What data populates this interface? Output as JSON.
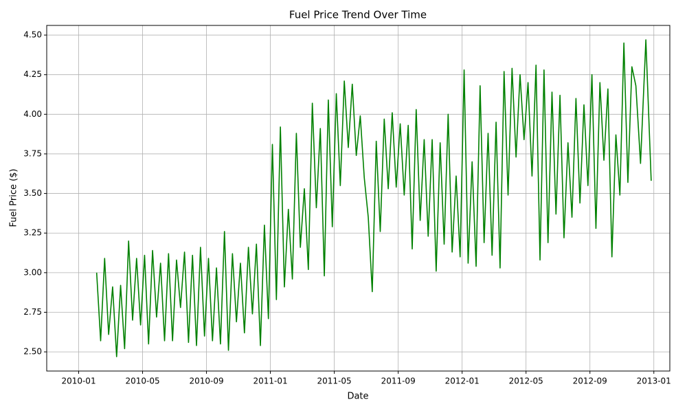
{
  "chart_data": {
    "type": "line",
    "title": "Fuel Price Trend Over Time",
    "x_label": "Date",
    "y_label": "Fuel Price ($)",
    "color": "#008000",
    "grid": true,
    "xlim": [
      "2009-11",
      "2013-02"
    ],
    "xticks": [
      "2010-01",
      "2010-05",
      "2010-09",
      "2011-01",
      "2011-05",
      "2011-09",
      "2012-01",
      "2012-05",
      "2012-09",
      "2013-01"
    ],
    "ylim": [
      2.379,
      4.561
    ],
    "yticks": [
      {
        "value": 2.5,
        "label": "2.50"
      },
      {
        "value": 2.75,
        "label": "2.75"
      },
      {
        "value": 3,
        "label": "3.00"
      },
      {
        "value": 3.25,
        "label": "3.25"
      },
      {
        "value": 3.5,
        "label": "3.50"
      },
      {
        "value": 3.75,
        "label": "3.75"
      },
      {
        "value": 4,
        "label": "4.00"
      },
      {
        "value": 4.25,
        "label": "4.25"
      },
      {
        "value": 4.5,
        "label": "4.50"
      }
    ],
    "x": [
      "2010-02",
      "2010-02",
      "2010-02",
      "2010-02",
      "2010-03",
      "2010-03",
      "2010-03",
      "2010-03",
      "2010-04",
      "2010-04",
      "2010-04",
      "2010-04",
      "2010-05",
      "2010-05",
      "2010-05",
      "2010-05",
      "2010-06",
      "2010-06",
      "2010-06",
      "2010-06",
      "2010-07",
      "2010-07",
      "2010-07",
      "2010-07",
      "2010-08",
      "2010-08",
      "2010-08",
      "2010-08",
      "2010-09",
      "2010-09",
      "2010-09",
      "2010-09",
      "2010-10",
      "2010-10",
      "2010-10",
      "2010-10",
      "2010-11",
      "2010-11",
      "2010-11",
      "2010-11",
      "2010-12",
      "2010-12",
      "2010-12",
      "2010-12",
      "2011-01",
      "2011-01",
      "2011-01",
      "2011-01",
      "2011-02",
      "2011-02",
      "2011-02",
      "2011-02",
      "2011-03",
      "2011-03",
      "2011-03",
      "2011-03",
      "2011-04",
      "2011-04",
      "2011-04",
      "2011-04",
      "2011-05",
      "2011-05",
      "2011-05",
      "2011-05",
      "2011-06",
      "2011-06",
      "2011-06",
      "2011-06",
      "2011-07",
      "2011-07",
      "2011-07",
      "2011-07",
      "2011-08",
      "2011-08",
      "2011-08",
      "2011-08",
      "2011-09",
      "2011-09",
      "2011-09",
      "2011-09",
      "2011-10",
      "2011-10",
      "2011-10",
      "2011-10",
      "2011-11",
      "2011-11",
      "2011-11",
      "2011-11",
      "2011-12",
      "2011-12",
      "2011-12",
      "2011-12",
      "2012-01",
      "2012-01",
      "2012-01",
      "2012-01",
      "2012-02",
      "2012-02",
      "2012-02",
      "2012-02",
      "2012-03",
      "2012-03",
      "2012-03",
      "2012-03",
      "2012-04",
      "2012-04",
      "2012-04",
      "2012-04",
      "2012-05",
      "2012-05",
      "2012-05",
      "2012-05",
      "2012-06",
      "2012-06",
      "2012-06",
      "2012-06",
      "2012-07",
      "2012-07",
      "2012-07",
      "2012-07",
      "2012-08",
      "2012-08",
      "2012-08",
      "2012-08",
      "2012-09",
      "2012-09",
      "2012-09",
      "2012-09",
      "2012-10",
      "2012-10",
      "2012-10",
      "2012-10",
      "2012-11",
      "2012-11",
      "2012-11",
      "2012-11",
      "2012-12",
      "2012-12",
      "2012-12"
    ],
    "values": [
      3.0,
      2.57,
      3.09,
      2.61,
      2.91,
      2.47,
      2.92,
      2.52,
      3.2,
      2.7,
      3.09,
      2.67,
      3.11,
      2.55,
      3.14,
      2.72,
      3.06,
      2.57,
      3.12,
      2.57,
      3.08,
      2.78,
      3.13,
      2.56,
      3.11,
      2.54,
      3.16,
      2.6,
      3.09,
      2.57,
      3.03,
      2.55,
      3.26,
      2.51,
      3.12,
      2.69,
      3.06,
      2.62,
      3.16,
      2.74,
      3.18,
      2.54,
      3.3,
      2.71,
      3.81,
      2.83,
      3.92,
      2.91,
      3.4,
      2.96,
      3.88,
      3.16,
      3.53,
      3.02,
      4.07,
      3.41,
      3.91,
      2.98,
      4.09,
      3.29,
      4.13,
      3.55,
      4.21,
      3.79,
      4.19,
      3.74,
      3.99,
      3.6,
      3.35,
      2.88,
      3.83,
      3.26,
      3.97,
      3.53,
      4.01,
      3.54,
      3.94,
      3.49,
      3.93,
      3.15,
      4.03,
      3.33,
      3.84,
      3.23,
      3.84,
      3.01,
      3.82,
      3.18,
      4.0,
      3.13,
      3.61,
      3.1,
      4.28,
      3.06,
      3.7,
      3.04,
      4.18,
      3.19,
      3.88,
      3.11,
      3.95,
      3.03,
      4.27,
      3.49,
      4.29,
      3.73,
      4.25,
      3.84,
      4.2,
      3.61,
      4.31,
      3.08,
      4.28,
      3.19,
      4.14,
      3.37,
      4.12,
      3.22,
      3.82,
      3.35,
      4.1,
      3.44,
      4.06,
      3.55,
      4.25,
      3.28,
      4.2,
      3.71,
      4.16,
      3.1,
      3.87,
      3.49,
      4.45,
      3.57,
      4.3,
      4.18,
      3.69,
      4.47,
      3.58
    ]
  }
}
